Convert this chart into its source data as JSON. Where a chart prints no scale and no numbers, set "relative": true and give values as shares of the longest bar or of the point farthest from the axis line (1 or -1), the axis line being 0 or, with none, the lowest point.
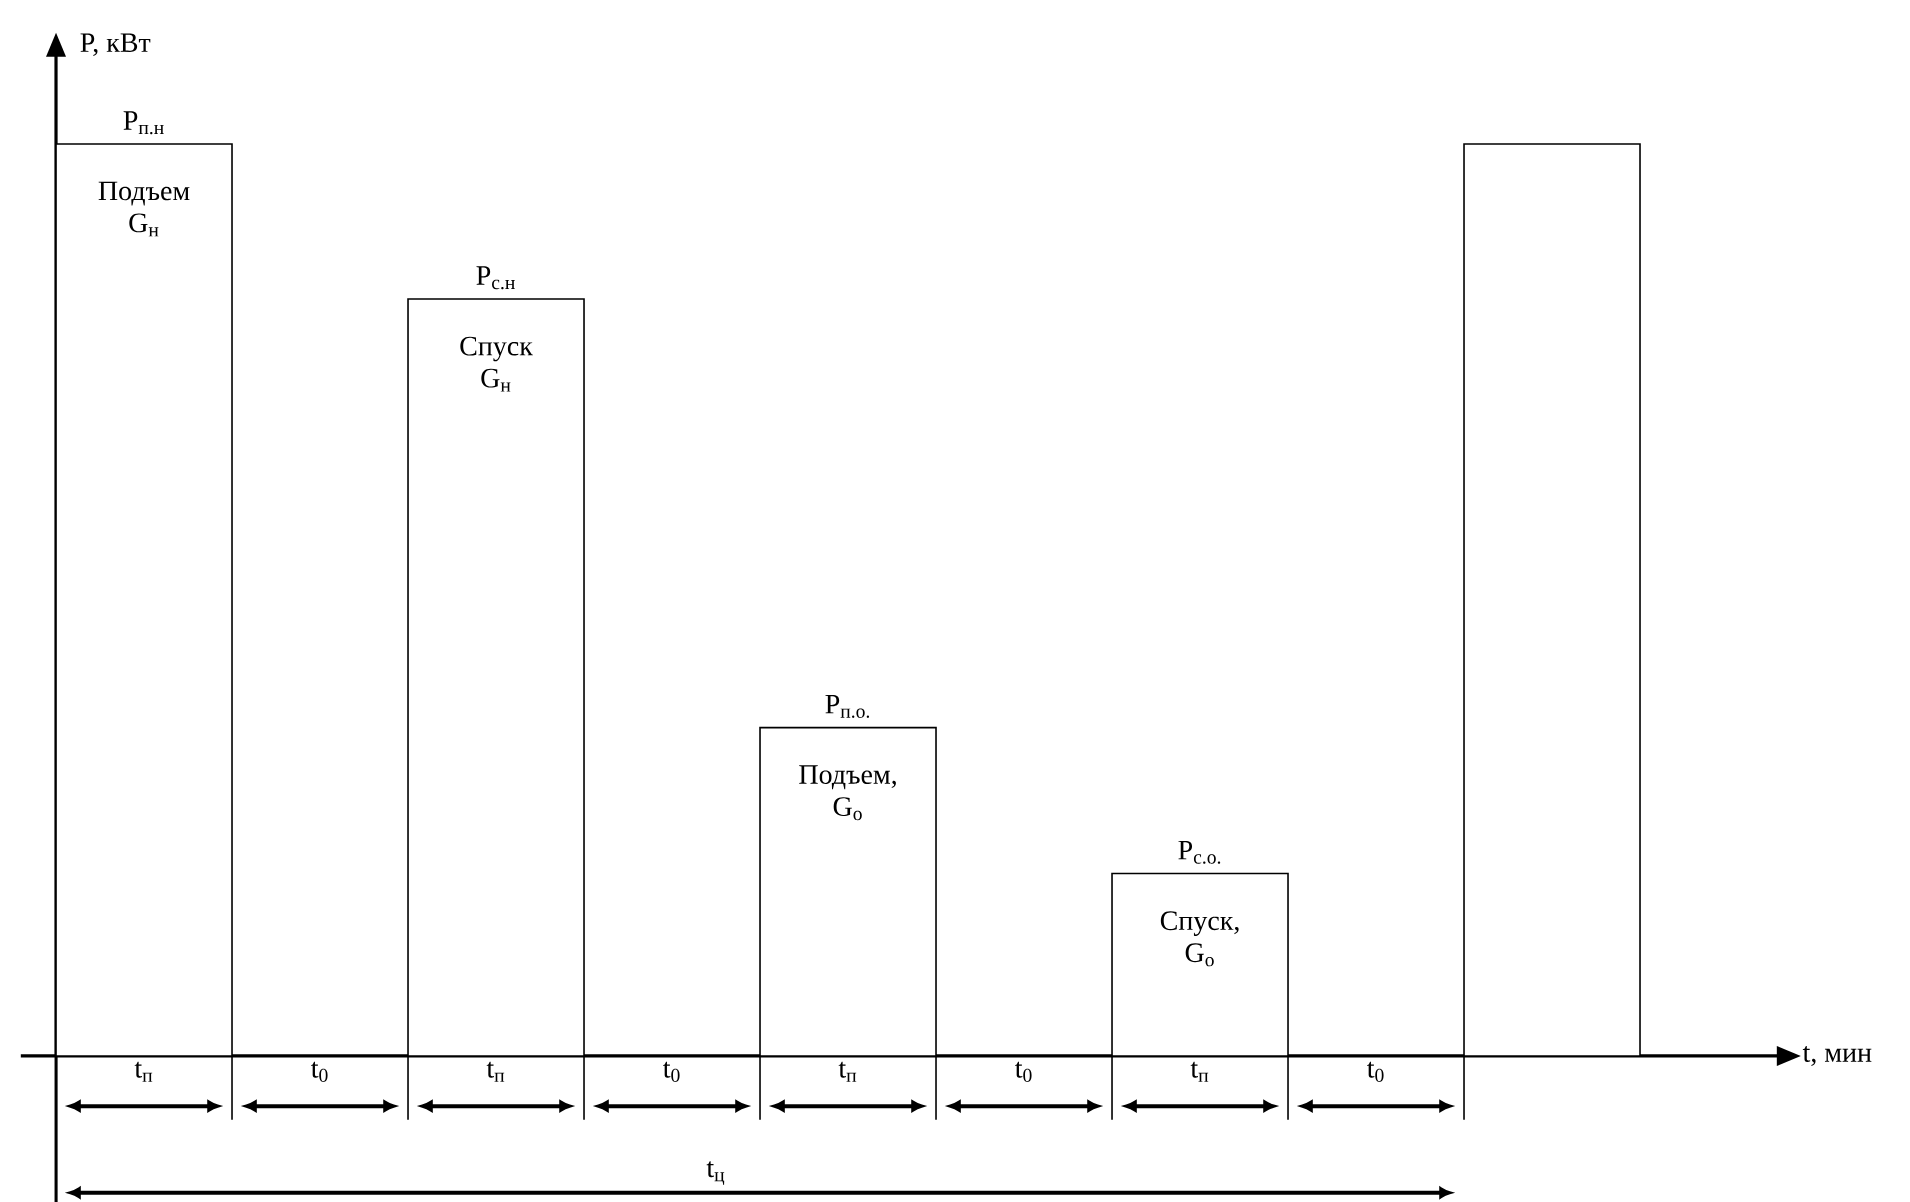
{
  "chart_data": {
    "type": "bar",
    "relative": true,
    "xlabel": "t, мин",
    "ylabel": "P, кВт",
    "color": "#000000",
    "categories": [
      "t$_{п}$",
      "t$_{0}$",
      "t$_{п}$",
      "t$_{0}$",
      "t$_{п}$",
      "t$_{0}$",
      "t$_{п}$",
      "t$_{0}$",
      null
    ],
    "values": [
      1,
      0,
      0.83,
      0,
      0.36,
      0,
      0.2,
      0,
      1
    ],
    "annotations": [
      "P$_{п.н}$",
      "Подъем G$_{н}$",
      "P$_{с.н}$",
      "Спуск G$_{н}$",
      "P$_{п.о.}$",
      "Подъем, G$_{o}$",
      "P$_{с.о.}$",
      "Спуск, G$_{o}$",
      "t$_{ц}$"
    ]
  }
}
